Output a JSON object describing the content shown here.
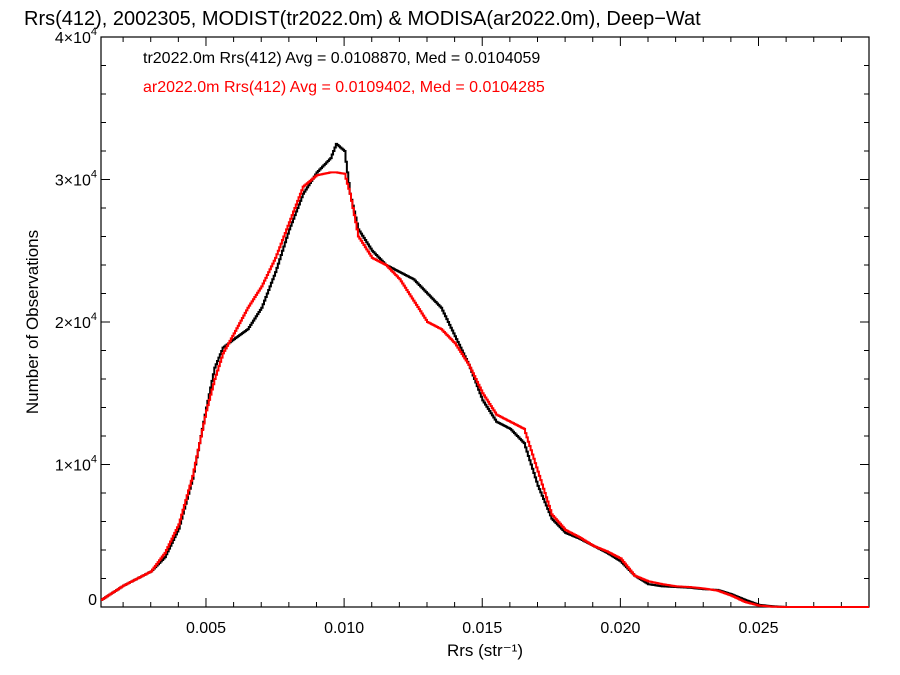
{
  "chart_data": {
    "type": "line",
    "title": "Rrs(412), 2002305, MODIST(tr2022.0m) & MODISA(ar2022.0m), Deep−Wat",
    "xlabel": "Rrs (str⁻¹)",
    "ylabel": "Number of Observations",
    "xlim": [
      0.0012,
      0.029
    ],
    "ylim": [
      0,
      40000
    ],
    "xticks": [
      0.005,
      0.01,
      0.015,
      0.02,
      0.025
    ],
    "xtick_labels": [
      "0.005",
      "0.010",
      "0.015",
      "0.020",
      "0.025"
    ],
    "yticks": [
      0,
      10000,
      20000,
      30000,
      40000
    ],
    "ytick_labels": [
      {
        "base": "0",
        "exp": ""
      },
      {
        "base": "1×10",
        "exp": "4"
      },
      {
        "base": "2×10",
        "exp": "4"
      },
      {
        "base": "3×10",
        "exp": "4"
      },
      {
        "base": "4×10",
        "exp": "4"
      }
    ],
    "annotations": [
      "tr2022.0m Rrs(412) Avg = 0.0108870, Med = 0.0104059",
      "ar2022.0m Rrs(412) Avg = 0.0109402, Med = 0.0104285"
    ],
    "series": [
      {
        "color": "#000000",
        "x": [
          0.0012,
          0.002,
          0.003,
          0.0035,
          0.004,
          0.0045,
          0.005,
          0.0053,
          0.0056,
          0.006,
          0.0065,
          0.007,
          0.0075,
          0.008,
          0.0085,
          0.009,
          0.0095,
          0.0097,
          0.01,
          0.0102,
          0.0105,
          0.011,
          0.0115,
          0.012,
          0.0125,
          0.013,
          0.0135,
          0.014,
          0.0145,
          0.015,
          0.0155,
          0.016,
          0.0165,
          0.017,
          0.0175,
          0.018,
          0.0185,
          0.019,
          0.0195,
          0.02,
          0.0205,
          0.021,
          0.0215,
          0.022,
          0.0225,
          0.023,
          0.0235,
          0.024,
          0.0245,
          0.025,
          0.0255,
          0.026,
          0.029
        ],
        "values": [
          500,
          1500,
          2500,
          3500,
          5500,
          9000,
          14000,
          16800,
          18200,
          18800,
          19500,
          21000,
          23500,
          26500,
          29000,
          30500,
          31500,
          32500,
          32000,
          29000,
          26500,
          25000,
          24000,
          23500,
          23000,
          22000,
          21000,
          19000,
          17000,
          14500,
          13000,
          12500,
          11500,
          8500,
          6200,
          5200,
          4800,
          4300,
          3800,
          3200,
          2200,
          1600,
          1450,
          1400,
          1350,
          1250,
          1200,
          900,
          500,
          150,
          50,
          0,
          0
        ]
      },
      {
        "color": "#ff0000",
        "x": [
          0.0012,
          0.002,
          0.003,
          0.0035,
          0.004,
          0.0045,
          0.005,
          0.0053,
          0.0056,
          0.006,
          0.0065,
          0.007,
          0.0075,
          0.008,
          0.0085,
          0.009,
          0.0095,
          0.0097,
          0.01,
          0.0102,
          0.0105,
          0.011,
          0.0115,
          0.012,
          0.0125,
          0.013,
          0.0135,
          0.014,
          0.0145,
          0.015,
          0.0155,
          0.016,
          0.0165,
          0.017,
          0.0175,
          0.018,
          0.0185,
          0.019,
          0.0195,
          0.02,
          0.0205,
          0.021,
          0.0215,
          0.022,
          0.0225,
          0.023,
          0.0235,
          0.024,
          0.0245,
          0.025,
          0.0255,
          0.026,
          0.029
        ],
        "values": [
          500,
          1500,
          2500,
          3800,
          5800,
          9200,
          13800,
          16000,
          17800,
          19200,
          21000,
          22500,
          24500,
          27000,
          29500,
          30300,
          30500,
          30500,
          30400,
          29000,
          26000,
          24500,
          24000,
          23000,
          21500,
          20000,
          19500,
          18500,
          17000,
          15000,
          13500,
          13000,
          12500,
          9500,
          6500,
          5400,
          4900,
          4300,
          3900,
          3400,
          2200,
          1800,
          1600,
          1450,
          1400,
          1300,
          1150,
          800,
          350,
          100,
          20,
          0,
          0
        ]
      }
    ]
  }
}
